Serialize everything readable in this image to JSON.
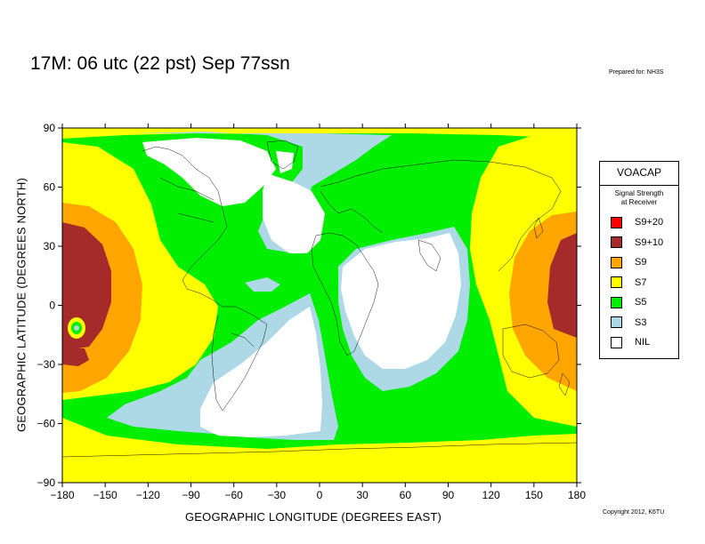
{
  "title": "17M:  06 utc (22 pst) Sep 77ssn",
  "prepared_for": "Prepared for: NH3S",
  "copyright": "Copyright 2012, K6TU",
  "axes": {
    "xlabel": "GEOGRAPHIC LONGITUDE (DEGREES EAST)",
    "ylabel": "GEOGRAPHIC LATITUDE (DEGREES NORTH)",
    "x_ticks": [
      "−180",
      "−150",
      "−120",
      "−90",
      "−60",
      "−30",
      "0",
      "30",
      "60",
      "90",
      "120",
      "150",
      "180"
    ],
    "y_ticks": [
      "90",
      "60",
      "30",
      "0",
      "−30",
      "−60",
      "−90"
    ],
    "x_range": [
      -180,
      180
    ],
    "y_range": [
      -90,
      90
    ]
  },
  "legend": {
    "title": "VOACAP",
    "subtitle_line1": "Signal Strength",
    "subtitle_line2": "at Receiver",
    "items": [
      {
        "label": "S9+20",
        "color": "#ff0000"
      },
      {
        "label": "S9+10",
        "color": "#a52a2a"
      },
      {
        "label": "S9",
        "color": "#ffa500"
      },
      {
        "label": "S7",
        "color": "#ffff00"
      },
      {
        "label": "S5",
        "color": "#00ee00"
      },
      {
        "label": "S3",
        "color": "#add8e6"
      },
      {
        "label": "NIL",
        "color": "#ffffff"
      }
    ]
  }
}
